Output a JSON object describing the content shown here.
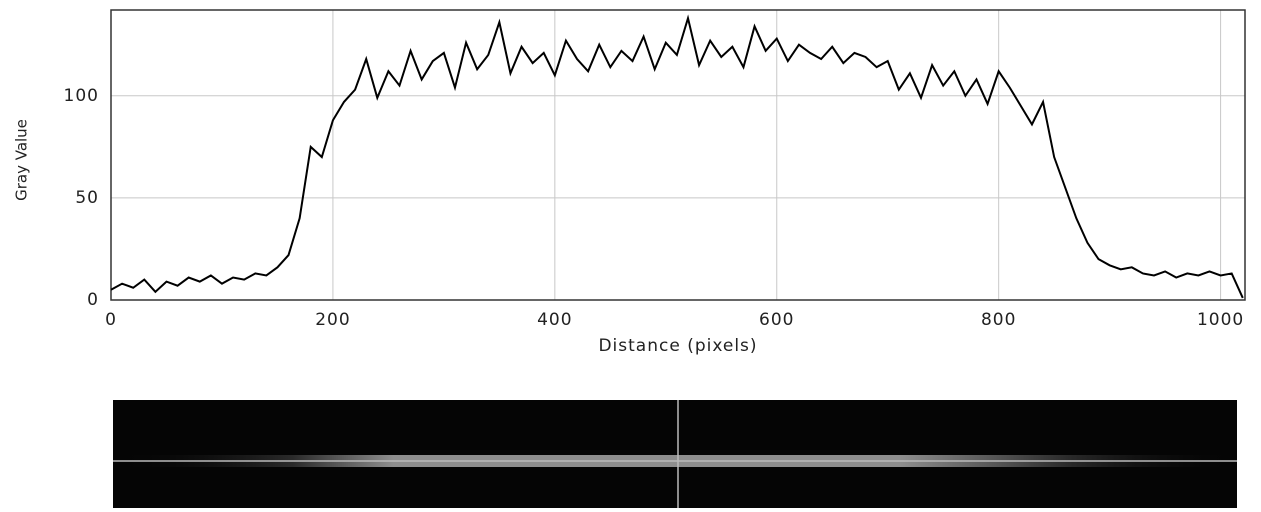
{
  "chart_data": {
    "type": "line",
    "xlabel": "Distance (pixels)",
    "ylabel": "Gray Value",
    "x": [
      0,
      10,
      20,
      30,
      40,
      50,
      60,
      70,
      80,
      90,
      100,
      110,
      120,
      130,
      140,
      150,
      160,
      170,
      180,
      190,
      200,
      210,
      220,
      230,
      240,
      250,
      260,
      270,
      280,
      290,
      300,
      310,
      320,
      330,
      340,
      350,
      360,
      370,
      380,
      390,
      400,
      410,
      420,
      430,
      440,
      450,
      460,
      470,
      480,
      490,
      500,
      510,
      520,
      530,
      540,
      550,
      560,
      570,
      580,
      590,
      600,
      610,
      620,
      630,
      640,
      650,
      660,
      670,
      680,
      690,
      700,
      710,
      720,
      730,
      740,
      750,
      760,
      770,
      780,
      790,
      800,
      810,
      820,
      830,
      840,
      850,
      860,
      870,
      880,
      890,
      900,
      910,
      920,
      930,
      940,
      950,
      960,
      970,
      980,
      990,
      1000,
      1010,
      1020
    ],
    "values": [
      5,
      8,
      6,
      10,
      4,
      9,
      7,
      11,
      9,
      12,
      8,
      11,
      10,
      13,
      12,
      16,
      22,
      40,
      75,
      70,
      88,
      97,
      103,
      118,
      99,
      112,
      105,
      122,
      108,
      117,
      121,
      104,
      126,
      113,
      120,
      136,
      111,
      124,
      116,
      121,
      110,
      127,
      118,
      112,
      125,
      114,
      122,
      117,
      129,
      113,
      126,
      120,
      138,
      115,
      127,
      119,
      124,
      114,
      134,
      122,
      128,
      117,
      125,
      121,
      118,
      124,
      116,
      121,
      119,
      114,
      117,
      103,
      111,
      99,
      115,
      105,
      112,
      100,
      108,
      96,
      112,
      104,
      95,
      86,
      97,
      70,
      55,
      40,
      28,
      20,
      17,
      15,
      16,
      13,
      12,
      14,
      11,
      13,
      12,
      14,
      12,
      13,
      1
    ],
    "color": "#000000",
    "xlim": [
      0,
      1022
    ],
    "ylim": [
      0,
      142
    ],
    "xticks": [
      0,
      200,
      400,
      600,
      800,
      1000
    ],
    "yticks": [
      0,
      50,
      100
    ],
    "grid": true
  }
}
